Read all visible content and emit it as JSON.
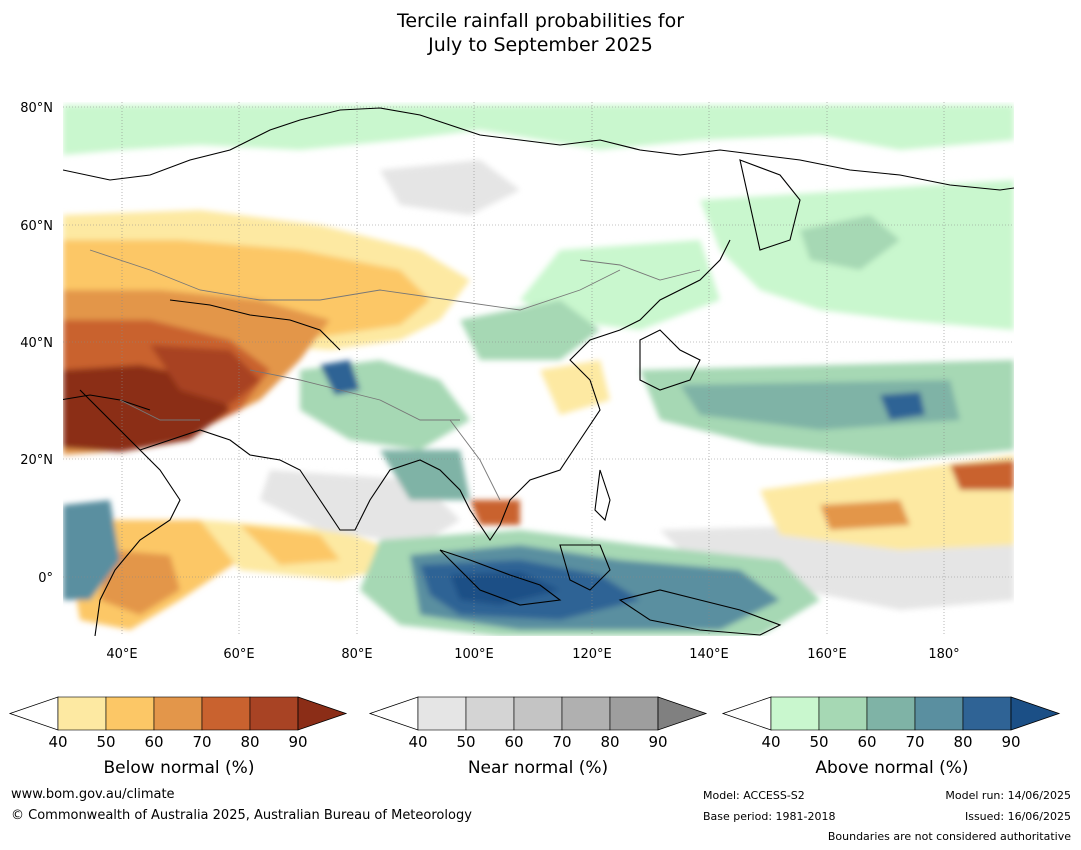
{
  "title": {
    "line1": "Tercile rainfall probabilities for",
    "line2": "July to September 2025"
  },
  "map": {
    "lat_labels": [
      "80°N",
      "60°N",
      "40°N",
      "20°N",
      "0°"
    ],
    "lon_labels": [
      "40°E",
      "60°E",
      "80°E",
      "100°E",
      "120°E",
      "140°E",
      "160°E",
      "180°"
    ]
  },
  "legends": [
    {
      "id": "below",
      "title": "Below normal (%)",
      "ticks": [
        "40",
        "50",
        "60",
        "70",
        "80",
        "90"
      ],
      "colors": [
        "#fde9a2",
        "#fcc766",
        "#e3964a",
        "#c9622f",
        "#a84324",
        "#8b2d17"
      ]
    },
    {
      "id": "near",
      "title": "Near normal (%)",
      "ticks": [
        "40",
        "50",
        "60",
        "70",
        "80",
        "90"
      ],
      "colors": [
        "#e5e5e5",
        "#d4d4d4",
        "#c4c4c4",
        "#b0b0b0",
        "#9e9e9e",
        "#808080"
      ]
    },
    {
      "id": "above",
      "title": "Above normal (%)",
      "ticks": [
        "40",
        "50",
        "60",
        "70",
        "80",
        "90"
      ],
      "colors": [
        "#c9f7ce",
        "#a6d8b4",
        "#7fb3a6",
        "#5a8fa0",
        "#2f6395",
        "#1b4f86"
      ]
    }
  ],
  "footer": {
    "url": "www.bom.gov.au/climate",
    "copyright": "© Commonwealth of Australia 2025, Australian Bureau of Meteorology",
    "model": "Model: ACCESS-S2",
    "base_period": "Base period: 1981-2018",
    "model_run": "Model run: 14/06/2025",
    "issued": "Issued: 16/06/2025",
    "disclaimer": "Boundaries are not considered authoritative"
  }
}
